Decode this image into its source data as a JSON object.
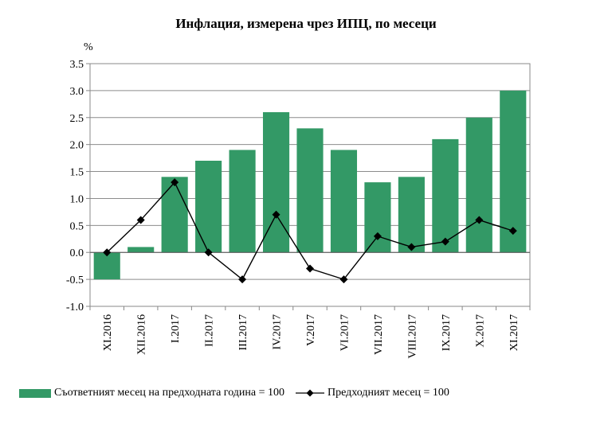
{
  "chart_data": {
    "type": "bar",
    "title": "Инфлация, измерена чрез ИПЦ, по месеци",
    "ylabel": "%",
    "ylim": [
      -1.0,
      3.5
    ],
    "yticks": [
      "3.5",
      "3.0",
      "2.5",
      "2.0",
      "1.5",
      "1.0",
      "0.5",
      "0.0",
      "-0.5",
      "-1.0"
    ],
    "ytick_values": [
      3.5,
      3.0,
      2.5,
      2.0,
      1.5,
      1.0,
      0.5,
      0.0,
      -0.5,
      -1.0
    ],
    "categories": [
      "XI.2016",
      "XII.2016",
      "I.2017",
      "II.2017",
      "III.2017",
      "IV.2017",
      "V.2017",
      "VI.2017",
      "VII.2017",
      "VIII.2017",
      "IX.2017",
      "X.2017",
      "XI.2017"
    ],
    "series": [
      {
        "name": "Съответният месец на предходната година = 100",
        "kind": "bar",
        "color": "#339966",
        "values": [
          -0.5,
          0.1,
          1.4,
          1.7,
          1.9,
          2.6,
          2.3,
          1.9,
          1.3,
          1.4,
          2.1,
          2.5,
          3.0
        ]
      },
      {
        "name": "Предходният месец = 100",
        "kind": "line",
        "color": "#000000",
        "marker": "diamond",
        "values": [
          0.0,
          0.6,
          1.3,
          0.0,
          -0.5,
          0.7,
          -0.3,
          -0.5,
          0.3,
          0.1,
          0.2,
          0.6,
          0.4
        ]
      }
    ],
    "grid": true,
    "legend_position": "bottom-left"
  }
}
